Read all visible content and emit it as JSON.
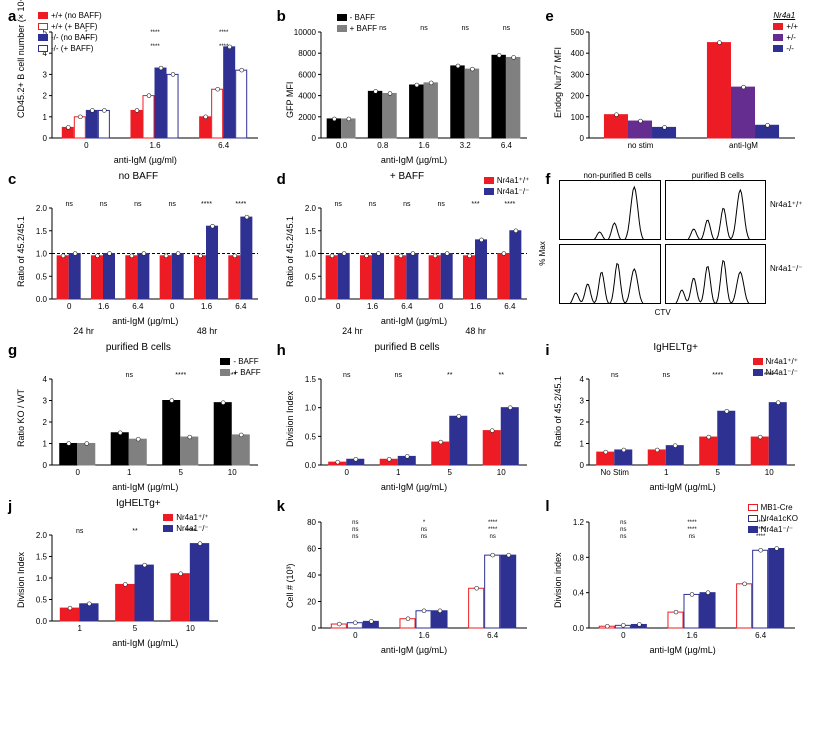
{
  "colors": {
    "red": "#ed1c24",
    "blue": "#2e3192",
    "purple": "#662d91",
    "black": "#000000",
    "gray": "#808080",
    "white": "#ffffff"
  },
  "a": {
    "letter": "a",
    "ylabel": "CD45.2+ B cell number (× 10⁴)",
    "xlabel": "anti-IgM (µg/ml)",
    "legend": [
      {
        "label": "+/+ (no BAFF)",
        "fill": "#ed1c24",
        "open": false
      },
      {
        "label": "+/+ (+ BAFF)",
        "fill": "#ed1c24",
        "open": true
      },
      {
        "label": "-/- (no BAFF)",
        "fill": "#2e3192",
        "open": false
      },
      {
        "label": "-/- (+ BAFF)",
        "fill": "#2e3192",
        "open": true
      }
    ],
    "categories": [
      "0",
      "1.6",
      "6.4"
    ],
    "values": [
      [
        0.5,
        1.0,
        1.3,
        1.3
      ],
      [
        1.3,
        2.0,
        3.3,
        3.0
      ],
      [
        1.0,
        2.3,
        4.3,
        3.2
      ]
    ],
    "ymax": 5,
    "ytick": 1,
    "sig": [
      [
        "*",
        "***",
        "",
        ""
      ],
      [
        "****",
        "",
        "****",
        ""
      ],
      [
        "****",
        "",
        "****",
        ""
      ]
    ]
  },
  "b": {
    "letter": "b",
    "ylabel": "GFP MFI",
    "xlabel": "anti-IgM (µg/mL)",
    "legend": [
      {
        "label": "- BAFF",
        "fill": "#000000"
      },
      {
        "label": "+ BAFF",
        "fill": "#808080"
      }
    ],
    "categories": [
      "0.0",
      "0.8",
      "1.6",
      "3.2",
      "6.4"
    ],
    "values": [
      [
        1800,
        1800
      ],
      [
        4400,
        4200
      ],
      [
        5000,
        5200
      ],
      [
        6800,
        6500
      ],
      [
        7800,
        7600
      ]
    ],
    "ymax": 10000,
    "ytick": 2000,
    "sig": [
      "ns",
      "ns",
      "ns",
      "ns",
      "ns"
    ]
  },
  "c": {
    "letter": "c",
    "title": "no BAFF",
    "ylabel": "Ratio of 45.2/45.1",
    "xlabel": "anti-IgM (µg/mL)",
    "legend": [
      {
        "label": "Nr4a1⁺/⁺",
        "fill": "#ed1c24"
      },
      {
        "label": "Nr4a1⁻/⁻",
        "fill": "#2e3192"
      }
    ],
    "timebins": [
      "24 hr",
      "48 hr"
    ],
    "categories": [
      "0",
      "1.6",
      "6.4",
      "0",
      "1.6",
      "6.4"
    ],
    "values": [
      [
        0.95,
        1.0
      ],
      [
        0.95,
        1.0
      ],
      [
        0.95,
        1.0
      ],
      [
        0.95,
        1.0
      ],
      [
        0.95,
        1.6
      ],
      [
        0.95,
        1.8
      ]
    ],
    "ymax": 2.0,
    "ytick": 0.5,
    "hline": 1.0,
    "sig": [
      "ns",
      "ns",
      "ns",
      "ns",
      "****",
      "****"
    ]
  },
  "d": {
    "letter": "d",
    "title": "+ BAFF",
    "ylabel": "Ratio of 45.2/45.1",
    "xlabel": "anti-IgM (µg/mL)",
    "legend": [
      {
        "label": "Nr4a1⁺/⁺",
        "fill": "#ed1c24"
      },
      {
        "label": "Nr4a1⁻/⁻",
        "fill": "#2e3192"
      }
    ],
    "timebins": [
      "24 hr",
      "48 hr"
    ],
    "categories": [
      "0",
      "1.6",
      "6.4",
      "0",
      "1.6",
      "6.4"
    ],
    "values": [
      [
        0.95,
        1.0
      ],
      [
        0.95,
        1.0
      ],
      [
        0.95,
        1.0
      ],
      [
        0.95,
        1.0
      ],
      [
        0.95,
        1.3
      ],
      [
        1.0,
        1.5
      ]
    ],
    "ymax": 2.0,
    "ytick": 0.5,
    "hline": 1.0,
    "sig": [
      "ns",
      "ns",
      "ns",
      "ns",
      "***",
      "****"
    ]
  },
  "e": {
    "letter": "e",
    "ylabel": "Endog Nur77 MFI",
    "xlabel": "",
    "legend_title": "Nr4a1",
    "legend": [
      {
        "label": "+/+",
        "fill": "#ed1c24"
      },
      {
        "label": "+/-",
        "fill": "#662d91"
      },
      {
        "label": "-/-",
        "fill": "#2e3192"
      }
    ],
    "categories": [
      "no stim",
      "anti-IgM"
    ],
    "values": [
      [
        110,
        80,
        50
      ],
      [
        450,
        240,
        60
      ]
    ],
    "ymax": 500,
    "ytick": 100
  },
  "f": {
    "letter": "f",
    "col_titles": [
      "non-purified B cells",
      "purified B cells"
    ],
    "row_labels": [
      "Nr4a1⁺/⁺",
      "Nr4a1⁻/⁻"
    ],
    "ylabel": "% Max",
    "xlabel": "CTV"
  },
  "g": {
    "letter": "g",
    "title": "purified B cells",
    "ylabel": "Ratio KO / WT",
    "xlabel": "anti-IgM (µg/mL)",
    "legend": [
      {
        "label": "- BAFF",
        "fill": "#000000"
      },
      {
        "label": "+ BAFF",
        "fill": "#808080"
      }
    ],
    "categories": [
      "0",
      "1",
      "5",
      "10"
    ],
    "values": [
      [
        1.0,
        1.0
      ],
      [
        1.5,
        1.2
      ],
      [
        3.0,
        1.3
      ],
      [
        2.9,
        1.4
      ]
    ],
    "ymax": 4,
    "ytick": 1,
    "sig": [
      "",
      "ns",
      "****",
      "***"
    ]
  },
  "h": {
    "letter": "h",
    "title": "purified B cells",
    "ylabel": "Division Index",
    "xlabel": "anti-IgM (µg/mL)",
    "legend": [
      {
        "label": "Nr4a1⁺/⁺",
        "fill": "#ed1c24"
      },
      {
        "label": "Nr4a1⁻/⁻",
        "fill": "#2e3192"
      }
    ],
    "categories": [
      "0",
      "1",
      "5",
      "10"
    ],
    "values": [
      [
        0.05,
        0.1
      ],
      [
        0.1,
        0.15
      ],
      [
        0.4,
        0.85
      ],
      [
        0.6,
        1.0
      ]
    ],
    "ymax": 1.5,
    "ytick": 0.5,
    "sig": [
      "ns",
      "ns",
      "**",
      "**"
    ]
  },
  "i": {
    "letter": "i",
    "title": "IgHELTg+",
    "ylabel": "Ratio of 45.2/45.1",
    "xlabel": "anti-IgM (µg/mL)",
    "legend": [
      {
        "label": "Nr4a1⁺/⁺",
        "fill": "#ed1c24"
      },
      {
        "label": "Nr4a1⁻/⁻",
        "fill": "#2e3192"
      }
    ],
    "categories": [
      "No Stim",
      "1",
      "5",
      "10"
    ],
    "values": [
      [
        0.6,
        0.7
      ],
      [
        0.7,
        0.9
      ],
      [
        1.3,
        2.5
      ],
      [
        1.3,
        2.9
      ]
    ],
    "ymax": 4,
    "ytick": 1,
    "sig": [
      "ns",
      "ns",
      "****",
      "****"
    ]
  },
  "j": {
    "letter": "j",
    "title": "IgHELTg+",
    "ylabel": "Division Index",
    "xlabel": "anti-IgM (µg/mL)",
    "legend": [
      {
        "label": "Nr4a1⁺/⁺",
        "fill": "#ed1c24"
      },
      {
        "label": "Nr4a1⁻/⁻",
        "fill": "#2e3192"
      }
    ],
    "categories": [
      "1",
      "5",
      "10"
    ],
    "values": [
      [
        0.3,
        0.4
      ],
      [
        0.85,
        1.3
      ],
      [
        1.1,
        1.8
      ]
    ],
    "ymax": 2.0,
    "ytick": 0.5,
    "sig": [
      "ns",
      "**",
      "****"
    ]
  },
  "k": {
    "letter": "k",
    "ylabel": "Cell # (10³)",
    "xlabel": "anti-IgM (µg/mL)",
    "legend": [
      {
        "label": "MB1-Cre",
        "fill": "#ed1c24",
        "open": true
      },
      {
        "label": "Nr4a1cKO",
        "fill": "#2e3192",
        "open": true
      },
      {
        "label": "Nr4a1⁻/⁻",
        "fill": "#2e3192",
        "open": false
      }
    ],
    "categories": [
      "0",
      "1.6",
      "6.4"
    ],
    "values": [
      [
        3,
        4,
        5
      ],
      [
        7,
        13,
        13
      ],
      [
        30,
        55,
        55
      ]
    ],
    "ymax": 80,
    "ytick": 20,
    "sig": [
      [
        "ns",
        "ns",
        "ns"
      ],
      [
        "*",
        "ns",
        "ns"
      ],
      [
        "****",
        "****",
        "ns"
      ]
    ]
  },
  "l": {
    "letter": "l",
    "ylabel": "Division index",
    "xlabel": "anti-IgM (µg/mL)",
    "legend": [
      {
        "label": "MB1-Cre",
        "fill": "#ed1c24",
        "open": true
      },
      {
        "label": "Nr4a1cKO",
        "fill": "#2e3192",
        "open": true
      },
      {
        "label": "Nr4a1⁻/⁻",
        "fill": "#2e3192",
        "open": false
      }
    ],
    "categories": [
      "0",
      "1.6",
      "6.4"
    ],
    "values": [
      [
        0.02,
        0.03,
        0.04
      ],
      [
        0.18,
        0.38,
        0.4
      ],
      [
        0.5,
        0.88,
        0.9
      ]
    ],
    "ymax": 1.2,
    "ytick": 0.4,
    "sig": [
      [
        "ns",
        "ns",
        "ns"
      ],
      [
        "****",
        "****",
        "ns"
      ],
      [
        "****",
        "****",
        "****"
      ]
    ]
  }
}
